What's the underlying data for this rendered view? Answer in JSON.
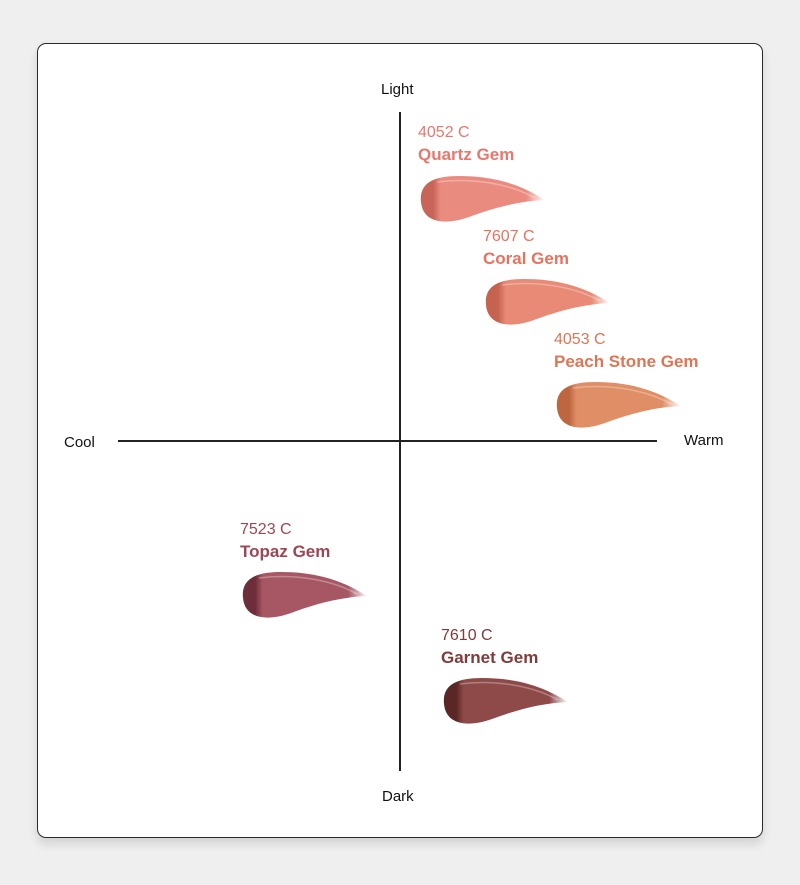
{
  "axes": {
    "top": "Light",
    "bottom": "Dark",
    "left": "Cool",
    "right": "Warm"
  },
  "shades": [
    {
      "code": "4052 C",
      "name": "Quartz Gem",
      "text_color": "#e7786e",
      "swatch_color": "#ea8b80",
      "swatch_dark": "#c96458"
    },
    {
      "code": "7607 C",
      "name": "Coral Gem",
      "text_color": "#e5735f",
      "swatch_color": "#e88a76",
      "swatch_dark": "#c5634f"
    },
    {
      "code": "4053 C",
      "name": "Peach Stone Gem",
      "text_color": "#dc7656",
      "swatch_color": "#e08e66",
      "swatch_dark": "#be6640"
    },
    {
      "code": "7523 C",
      "name": "Topaz Gem",
      "text_color": "#9c4755",
      "swatch_color": "#a75764",
      "swatch_dark": "#6e2d3a"
    },
    {
      "code": "7610 C",
      "name": "Garnet Gem",
      "text_color": "#7f3c3c",
      "swatch_color": "#8e4a48",
      "swatch_dark": "#5a2626"
    }
  ]
}
